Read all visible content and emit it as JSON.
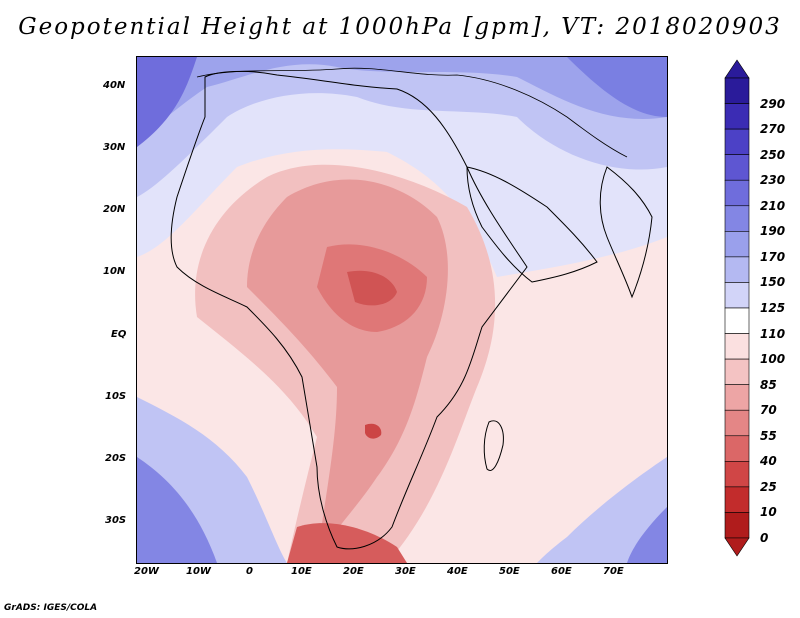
{
  "title": "Geopotential Height at 1000hPa [gpm], VT: 2018020903",
  "credit": "GrADS: IGES/COLA",
  "y_ticks": [
    "40N",
    "30N",
    "20N",
    "10N",
    "EQ",
    "10S",
    "20S",
    "30S"
  ],
  "x_ticks": [
    "20W",
    "10W",
    "0",
    "10E",
    "20E",
    "30E",
    "40E",
    "50E",
    "60E",
    "70E"
  ],
  "colorbar": {
    "levels": [
      "290",
      "270",
      "250",
      "230",
      "210",
      "190",
      "170",
      "150",
      "125",
      "110",
      "100",
      "85",
      "70",
      "55",
      "40",
      "25",
      "10",
      "0"
    ],
    "colors": [
      "#2a1b9a",
      "#3b2cb4",
      "#4c41c6",
      "#5e56d2",
      "#6f6ddc",
      "#8386e4",
      "#9aa0ec",
      "#b4b9f2",
      "#d2d4f8",
      "#ffffff",
      "#fbe0e0",
      "#f4c3c3",
      "#eda5a5",
      "#e48686",
      "#db6767",
      "#d04646",
      "#c22c2c",
      "#b01c1c"
    ]
  },
  "chart_data": {
    "type": "heatmap",
    "title": "Geopotential Height at 1000hPa [gpm], VT: 2018020903",
    "variable": "Geopotential Height at 1000hPa",
    "units": "gpm",
    "valid_time": "2018020903",
    "lon_range": [
      -22,
      80
    ],
    "lat_range": [
      -36,
      45
    ],
    "contour_levels": [
      0,
      10,
      25,
      40,
      55,
      70,
      85,
      100,
      110,
      125,
      150,
      170,
      190,
      210,
      230,
      250,
      270,
      290
    ]
  }
}
